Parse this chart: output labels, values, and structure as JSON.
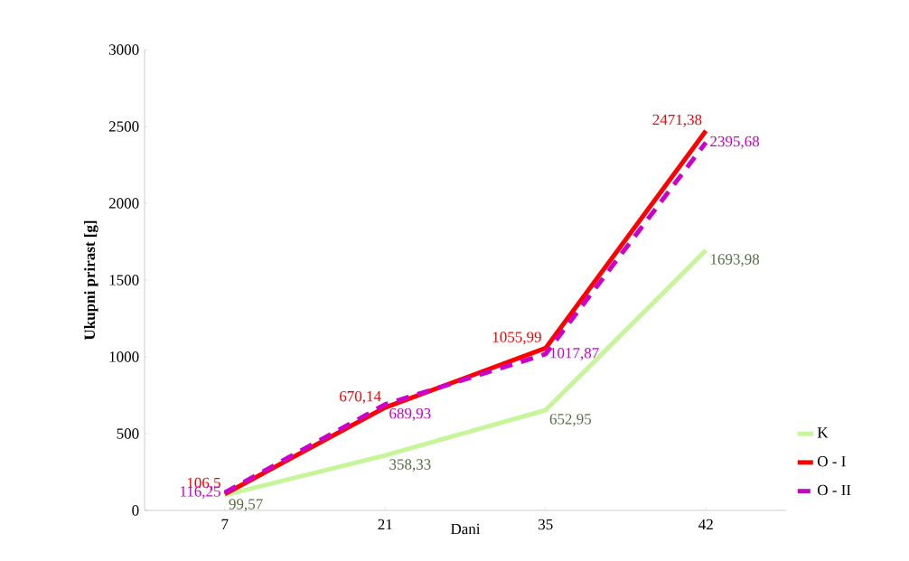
{
  "chart_data": {
    "type": "line",
    "xlabel": "Dani",
    "ylabel": "Ukupni prirast [g]",
    "categories": [
      "7",
      "21",
      "35",
      "42"
    ],
    "series": [
      {
        "name": "K",
        "color": "#c6f59a",
        "values": [
          99.57,
          358.33,
          652.95,
          1693.98
        ],
        "value_labels": [
          "99,57",
          "358,33",
          "652,95",
          "1693,98"
        ]
      },
      {
        "name": "O - I",
        "color": "#ff0000",
        "values": [
          106.5,
          670.14,
          1055.99,
          2471.38
        ],
        "value_labels": [
          "106,5",
          "670,14",
          "1055,99",
          "2471,38"
        ]
      },
      {
        "name": "O - II",
        "color": "#cc00cc",
        "line_style": "dashed",
        "values": [
          116.25,
          689.93,
          1017.87,
          2395.68
        ],
        "value_labels": [
          "116,25",
          "689,93",
          "1017,87",
          "2395,68"
        ]
      }
    ],
    "ylim": [
      0,
      3000
    ],
    "yticks": [
      0,
      500,
      1000,
      1500,
      2000,
      2500,
      3000
    ],
    "grid": false,
    "legend": "right"
  }
}
